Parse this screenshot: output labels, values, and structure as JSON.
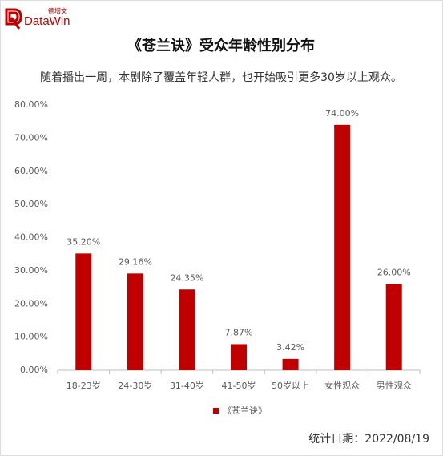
{
  "logo": {
    "name": "DataWin",
    "name_cn": "德塔文"
  },
  "chart_data": {
    "type": "bar",
    "title": "《苍兰诀》受众年龄性别分布",
    "subtitle": "随着播出一周，本剧除了覆盖年轻人群，也开始吸引更多30岁以上观众。",
    "categories": [
      "18-23岁",
      "24-30岁",
      "31-40岁",
      "41-50岁",
      "50岁以上",
      "女性观众",
      "男性观众"
    ],
    "series": [
      {
        "name": "《苍兰诀》",
        "color": "#c00000",
        "values": [
          35.2,
          29.16,
          24.35,
          7.87,
          3.42,
          74,
          26
        ],
        "value_labels": [
          "35.20%",
          "29.16%",
          "24.35%",
          "7.87%",
          "3.42%",
          "74.00%",
          "26.00%"
        ]
      }
    ],
    "ylim": [
      0,
      80
    ],
    "yticks": [
      {
        "value": 0,
        "label": "0.00%"
      },
      {
        "value": 10,
        "label": "10.00%"
      },
      {
        "value": 20,
        "label": "20.00%"
      },
      {
        "value": 30,
        "label": "30.00%"
      },
      {
        "value": 40,
        "label": "40.00%"
      },
      {
        "value": 50,
        "label": "50.00%"
      },
      {
        "value": 60,
        "label": "60.00%"
      },
      {
        "value": 70,
        "label": "70.00%"
      },
      {
        "value": 80,
        "label": "80.00%"
      }
    ],
    "legend": "bottom",
    "footer": "统计日期：2022/08/19"
  }
}
